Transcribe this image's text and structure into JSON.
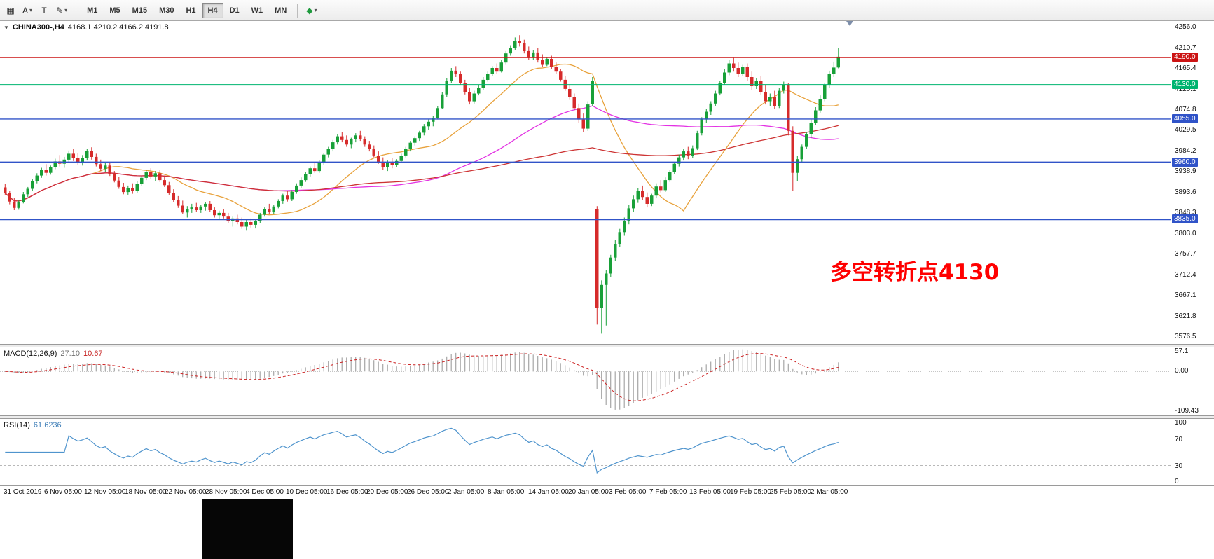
{
  "toolbar": {
    "caret_glyph": "▾",
    "left_tools": [
      {
        "name": "chart-grid",
        "glyph": "▦"
      },
      {
        "name": "text-tool",
        "glyph": "A"
      },
      {
        "name": "arrow-tool",
        "glyph": "T"
      },
      {
        "name": "pen-tool",
        "glyph": "✎"
      }
    ],
    "timeframes": [
      {
        "label": "M1",
        "active": false
      },
      {
        "label": "M5",
        "active": false
      },
      {
        "label": "M15",
        "active": false
      },
      {
        "label": "M30",
        "active": false
      },
      {
        "label": "H1",
        "active": false
      },
      {
        "label": "H4",
        "active": true
      },
      {
        "label": "D1",
        "active": false
      },
      {
        "label": "W1",
        "active": false
      },
      {
        "label": "MN",
        "active": false
      }
    ],
    "objects_tool_glyph": "◆"
  },
  "chart": {
    "collapse_glyph": "▼",
    "symbol_label": "CHINA300-,H4",
    "ohlc_label": "4168.1 4210.2 4166.2 4191.8",
    "annotation": {
      "text": "多空转折点4130",
      "color": "#ff0000"
    }
  },
  "chart_data": {
    "type": "candlestick",
    "symbol": "CHINA300-",
    "timeframe": "H4",
    "title": "CHINA300-,H4 4168.1 4210.2 4166.2 4191.8",
    "open": "4168.1",
    "high": "4210.2",
    "low": "4166.2",
    "close": "4191.8",
    "up_color": "#18a038",
    "down_color": "#d62b2b",
    "y_axis": {
      "min": 3560,
      "max": 4270,
      "ticks": [
        "4256.0",
        "4210.7",
        "4165.4",
        "4120.1",
        "4074.8",
        "4029.5",
        "3984.2",
        "3938.9",
        "3893.6",
        "3848.3",
        "3803.0",
        "3757.7",
        "3712.4",
        "3667.1",
        "3621.8",
        "3576.5"
      ]
    },
    "x_labels": [
      "31 Oct 2019",
      "6 Nov 05:00",
      "12 Nov 05:00",
      "18 Nov 05:00",
      "22 Nov 05:00",
      "28 Nov 05:00",
      "4 Dec 05:00",
      "10 Dec 05:00",
      "16 Dec 05:00",
      "20 Dec 05:00",
      "26 Dec 05:00",
      "2 Jan 05:00",
      "8 Jan 05:00",
      "14 Jan 05:00",
      "20 Jan 05:00",
      "3 Feb 05:00",
      "7 Feb 05:00",
      "13 Feb 05:00",
      "19 Feb 05:00",
      "25 Feb 05:00",
      "2 Mar 05:00"
    ],
    "hlines": [
      {
        "value": 4190.0,
        "label": "4190.0",
        "color": "#cc1414",
        "width": 1.4
      },
      {
        "value": 4130.0,
        "label": "4130.0",
        "color": "#00b470",
        "width": 2
      },
      {
        "value": 4055.0,
        "label": "4055.0",
        "color": "#3053c8",
        "width": 1.4
      },
      {
        "value": 3960.0,
        "label": "3960.0",
        "color": "#3053c8",
        "width": 2.2
      },
      {
        "value": 3835.0,
        "label": "3835.0",
        "color": "#3053c8",
        "width": 2.2
      }
    ],
    "moving_averages": [
      {
        "period": 20,
        "color": "#e8a23c"
      },
      {
        "period": 60,
        "color": "#e332e3"
      },
      {
        "period": 120,
        "color": "#cd3333"
      }
    ],
    "indicators": [
      {
        "name": "MACD",
        "label": "MACD(12,26,9)",
        "value_main": "27.10",
        "value_signal": "10.67",
        "axis_ticks": [
          "57.1",
          "0.00",
          "-109.43"
        ],
        "histogram_color": "#a6a6a6",
        "signal_color": "#cc2222"
      },
      {
        "name": "RSI",
        "label": "RSI(14)",
        "value": "61.6236",
        "axis_ticks": [
          "100",
          "70",
          "30",
          "0"
        ],
        "levels": [
          70,
          30
        ],
        "line_color": "#4f94cd"
      }
    ],
    "candles": [
      [
        3905,
        3912,
        3888,
        3893
      ],
      [
        3893,
        3898,
        3868,
        3874
      ],
      [
        3874,
        3882,
        3855,
        3860
      ],
      [
        3860,
        3878,
        3856,
        3873
      ],
      [
        3873,
        3895,
        3870,
        3890
      ],
      [
        3890,
        3906,
        3884,
        3902
      ],
      [
        3902,
        3924,
        3898,
        3919
      ],
      [
        3919,
        3936,
        3914,
        3931
      ],
      [
        3931,
        3948,
        3926,
        3943
      ],
      [
        3943,
        3956,
        3931,
        3937
      ],
      [
        3937,
        3953,
        3933,
        3949
      ],
      [
        3949,
        3968,
        3945,
        3962
      ],
      [
        3962,
        3976,
        3951,
        3957
      ],
      [
        3957,
        3972,
        3948,
        3966
      ],
      [
        3966,
        3986,
        3959,
        3979
      ],
      [
        3979,
        3989,
        3963,
        3969
      ],
      [
        3969,
        3981,
        3955,
        3960
      ],
      [
        3960,
        3976,
        3953,
        3970
      ],
      [
        3970,
        3990,
        3964,
        3985
      ],
      [
        3985,
        3993,
        3966,
        3972
      ],
      [
        3972,
        3979,
        3951,
        3956
      ],
      [
        3956,
        3966,
        3941,
        3946
      ],
      [
        3946,
        3959,
        3938,
        3953
      ],
      [
        3953,
        3958,
        3930,
        3934
      ],
      [
        3934,
        3941,
        3916,
        3920
      ],
      [
        3920,
        3928,
        3902,
        3906
      ],
      [
        3906,
        3915,
        3890,
        3895
      ],
      [
        3895,
        3909,
        3889,
        3904
      ],
      [
        3904,
        3914,
        3891,
        3897
      ],
      [
        3897,
        3918,
        3893,
        3913
      ],
      [
        3913,
        3931,
        3908,
        3926
      ],
      [
        3926,
        3944,
        3921,
        3939
      ],
      [
        3939,
        3947,
        3924,
        3929
      ],
      [
        3929,
        3941,
        3919,
        3936
      ],
      [
        3936,
        3943,
        3917,
        3921
      ],
      [
        3921,
        3929,
        3906,
        3910
      ],
      [
        3910,
        3917,
        3889,
        3893
      ],
      [
        3893,
        3901,
        3873,
        3878
      ],
      [
        3878,
        3886,
        3860,
        3865
      ],
      [
        3865,
        3876,
        3846,
        3850
      ],
      [
        3850,
        3864,
        3839,
        3857
      ],
      [
        3857,
        3869,
        3849,
        3861
      ],
      [
        3861,
        3871,
        3851,
        3855
      ],
      [
        3855,
        3867,
        3849,
        3863
      ],
      [
        3863,
        3873,
        3854,
        3869
      ],
      [
        3869,
        3875,
        3851,
        3855
      ],
      [
        3855,
        3861,
        3839,
        3844
      ],
      [
        3844,
        3854,
        3834,
        3849
      ],
      [
        3849,
        3857,
        3837,
        3841
      ],
      [
        3841,
        3849,
        3827,
        3831
      ],
      [
        3831,
        3841,
        3819,
        3837
      ],
      [
        3837,
        3845,
        3824,
        3829
      ],
      [
        3829,
        3839,
        3814,
        3819
      ],
      [
        3819,
        3834,
        3810,
        3829
      ],
      [
        3829,
        3837,
        3817,
        3823
      ],
      [
        3823,
        3835,
        3815,
        3831
      ],
      [
        3831,
        3849,
        3827,
        3845
      ],
      [
        3845,
        3861,
        3841,
        3857
      ],
      [
        3857,
        3869,
        3847,
        3851
      ],
      [
        3851,
        3867,
        3847,
        3863
      ],
      [
        3863,
        3879,
        3859,
        3875
      ],
      [
        3875,
        3891,
        3869,
        3887
      ],
      [
        3887,
        3897,
        3874,
        3879
      ],
      [
        3879,
        3899,
        3875,
        3895
      ],
      [
        3895,
        3914,
        3891,
        3909
      ],
      [
        3909,
        3927,
        3904,
        3921
      ],
      [
        3921,
        3939,
        3917,
        3934
      ],
      [
        3934,
        3951,
        3929,
        3947
      ],
      [
        3947,
        3959,
        3937,
        3941
      ],
      [
        3941,
        3964,
        3937,
        3959
      ],
      [
        3959,
        3981,
        3954,
        3977
      ],
      [
        3977,
        3994,
        3971,
        3989
      ],
      [
        3989,
        4009,
        3984,
        4004
      ],
      [
        4004,
        4021,
        3999,
        4017
      ],
      [
        4017,
        4027,
        4004,
        4009
      ],
      [
        4009,
        4019,
        3994,
        3999
      ],
      [
        3999,
        4014,
        3991,
        4011
      ],
      [
        4011,
        4024,
        4004,
        4019
      ],
      [
        4019,
        4029,
        4007,
        4011
      ],
      [
        4011,
        4017,
        3994,
        3999
      ],
      [
        3999,
        4007,
        3984,
        3989
      ],
      [
        3989,
        3997,
        3971,
        3975
      ],
      [
        3975,
        3984,
        3957,
        3961
      ],
      [
        3961,
        3971,
        3944,
        3949
      ],
      [
        3949,
        3964,
        3941,
        3959
      ],
      [
        3959,
        3969,
        3947,
        3954
      ],
      [
        3954,
        3967,
        3949,
        3963
      ],
      [
        3963,
        3979,
        3959,
        3975
      ],
      [
        3975,
        3994,
        3971,
        3989
      ],
      [
        3989,
        4007,
        3984,
        4003
      ],
      [
        4003,
        4017,
        3997,
        4013
      ],
      [
        4013,
        4029,
        4007,
        4025
      ],
      [
        4025,
        4044,
        4019,
        4039
      ],
      [
        4039,
        4054,
        4031,
        4049
      ],
      [
        4049,
        4061,
        4039,
        4057
      ],
      [
        4057,
        4084,
        4054,
        4079
      ],
      [
        4079,
        4114,
        4077,
        4109
      ],
      [
        4109,
        4144,
        4104,
        4139
      ],
      [
        4139,
        4167,
        4134,
        4161
      ],
      [
        4161,
        4171,
        4147,
        4154
      ],
      [
        4154,
        4159,
        4129,
        4134
      ],
      [
        4134,
        4141,
        4109,
        4114
      ],
      [
        4114,
        4124,
        4087,
        4094
      ],
      [
        4094,
        4117,
        4089,
        4111
      ],
      [
        4111,
        4129,
        4107,
        4124
      ],
      [
        4124,
        4147,
        4119,
        4141
      ],
      [
        4141,
        4159,
        4137,
        4154
      ],
      [
        4154,
        4171,
        4149,
        4167
      ],
      [
        4167,
        4177,
        4154,
        4159
      ],
      [
        4159,
        4184,
        4157,
        4179
      ],
      [
        4179,
        4204,
        4174,
        4199
      ],
      [
        4199,
        4217,
        4194,
        4211
      ],
      [
        4211,
        4234,
        4207,
        4227
      ],
      [
        4227,
        4239,
        4214,
        4221
      ],
      [
        4221,
        4229,
        4199,
        4204
      ],
      [
        4204,
        4214,
        4184,
        4189
      ],
      [
        4189,
        4207,
        4185,
        4201
      ],
      [
        4201,
        4211,
        4179,
        4184
      ],
      [
        4184,
        4197,
        4169,
        4174
      ],
      [
        4174,
        4191,
        4171,
        4187
      ],
      [
        4187,
        4194,
        4164,
        4169
      ],
      [
        4169,
        4179,
        4154,
        4159
      ],
      [
        4159,
        4164,
        4137,
        4141
      ],
      [
        4141,
        4149,
        4117,
        4121
      ],
      [
        4121,
        4131,
        4097,
        4104
      ],
      [
        4104,
        4111,
        4074,
        4079
      ],
      [
        4079,
        4089,
        4047,
        4054
      ],
      [
        4054,
        4067,
        4027,
        4034
      ],
      [
        4034,
        4094,
        4029,
        4087
      ],
      [
        4087,
        4147,
        4084,
        4139
      ],
      [
        3858,
        3864,
        3604,
        3641
      ],
      [
        3641,
        3701,
        3584,
        3691
      ],
      [
        3691,
        3724,
        3602,
        3716
      ],
      [
        3716,
        3757,
        3708,
        3751
      ],
      [
        3751,
        3789,
        3743,
        3781
      ],
      [
        3781,
        3814,
        3774,
        3807
      ],
      [
        3807,
        3839,
        3799,
        3831
      ],
      [
        3831,
        3867,
        3824,
        3859
      ],
      [
        3859,
        3887,
        3851,
        3879
      ],
      [
        3879,
        3904,
        3871,
        3897
      ],
      [
        3897,
        3909,
        3877,
        3884
      ],
      [
        3884,
        3894,
        3861,
        3869
      ],
      [
        3869,
        3891,
        3864,
        3887
      ],
      [
        3887,
        3914,
        3881,
        3907
      ],
      [
        3907,
        3921,
        3894,
        3899
      ],
      [
        3899,
        3927,
        3895,
        3921
      ],
      [
        3921,
        3944,
        3917,
        3939
      ],
      [
        3939,
        3961,
        3934,
        3957
      ],
      [
        3957,
        3977,
        3951,
        3971
      ],
      [
        3971,
        3989,
        3964,
        3984
      ],
      [
        3984,
        3994,
        3967,
        3974
      ],
      [
        3974,
        3997,
        3969,
        3991
      ],
      [
        3991,
        4029,
        3987,
        4024
      ],
      [
        4024,
        4059,
        4019,
        4054
      ],
      [
        4054,
        4077,
        4047,
        4071
      ],
      [
        4071,
        4094,
        4064,
        4089
      ],
      [
        4089,
        4117,
        4084,
        4111
      ],
      [
        4111,
        4139,
        4107,
        4134
      ],
      [
        4134,
        4164,
        4129,
        4157
      ],
      [
        4157,
        4184,
        4151,
        4177
      ],
      [
        4177,
        4189,
        4159,
        4167
      ],
      [
        4167,
        4179,
        4147,
        4154
      ],
      [
        4154,
        4174,
        4149,
        4169
      ],
      [
        4169,
        4177,
        4139,
        4147
      ],
      [
        4147,
        4159,
        4119,
        4127
      ],
      [
        4127,
        4144,
        4121,
        4139
      ],
      [
        4139,
        4149,
        4109,
        4114
      ],
      [
        4114,
        4129,
        4087,
        4094
      ],
      [
        4094,
        4111,
        4084,
        4104
      ],
      [
        4104,
        4117,
        4077,
        4084
      ],
      [
        4084,
        4124,
        4079,
        4117
      ],
      [
        4117,
        4137,
        4111,
        4131
      ],
      [
        4131,
        4134,
        4019,
        4029
      ],
      [
        4029,
        4039,
        3897,
        3937
      ],
      [
        3937,
        3974,
        3919,
        3967
      ],
      [
        3967,
        3999,
        3959,
        3994
      ],
      [
        3994,
        4027,
        3989,
        4021
      ],
      [
        4021,
        4054,
        4014,
        4047
      ],
      [
        4047,
        4081,
        4041,
        4074
      ],
      [
        4074,
        4107,
        4069,
        4099
      ],
      [
        4099,
        4134,
        4094,
        4129
      ],
      [
        4129,
        4161,
        4124,
        4154
      ],
      [
        4154,
        4181,
        4147,
        4168
      ],
      [
        4168.1,
        4210.2,
        4166.2,
        4191.8
      ]
    ]
  }
}
